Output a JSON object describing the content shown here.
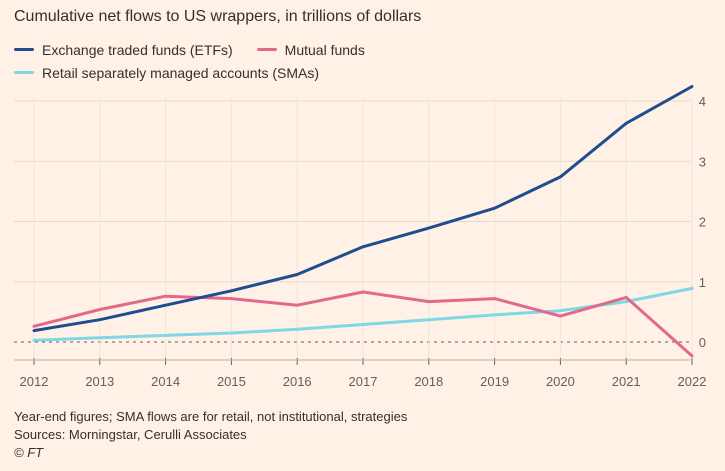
{
  "chart_data": {
    "type": "line",
    "title": "Cumulative net flows to US wrappers, in trillions of dollars",
    "x": [
      2012,
      2013,
      2014,
      2015,
      2016,
      2017,
      2018,
      2019,
      2020,
      2021,
      2022
    ],
    "x_tick_labels": [
      "2012",
      "2013",
      "2014",
      "2015",
      "2016",
      "2017",
      "2018",
      "2019",
      "2020",
      "2021",
      "2022"
    ],
    "y_ticks": [
      0,
      1,
      2,
      3,
      4
    ],
    "y_tick_labels": [
      "0",
      "1",
      "2",
      "3",
      "4"
    ],
    "ylim": [
      -0.25,
      4.35
    ],
    "grid": true,
    "legend_position": "top-left",
    "series": [
      {
        "name": "Exchange traded funds (ETFs)",
        "color": "#1F4D8F",
        "values": [
          0.19,
          0.37,
          0.61,
          0.85,
          1.12,
          1.58,
          1.89,
          2.22,
          2.74,
          3.63,
          4.24
        ]
      },
      {
        "name": "Mutual funds",
        "color": "#E0698C",
        "values": [
          0.26,
          0.54,
          0.76,
          0.72,
          0.61,
          0.83,
          0.67,
          0.72,
          0.43,
          0.74,
          -0.23
        ]
      },
      {
        "name": "Retail separately managed accounts (SMAs)",
        "color": "#7FD8E3",
        "values": [
          0.03,
          0.07,
          0.11,
          0.15,
          0.21,
          0.29,
          0.37,
          0.45,
          0.52,
          0.67,
          0.89
        ]
      }
    ]
  },
  "notes": {
    "line1": "Year-end figures; SMA flows are for retail, not institutional, strategies",
    "line2": "Sources: Morningstar, Cerulli Associates",
    "credit": "© FT"
  }
}
